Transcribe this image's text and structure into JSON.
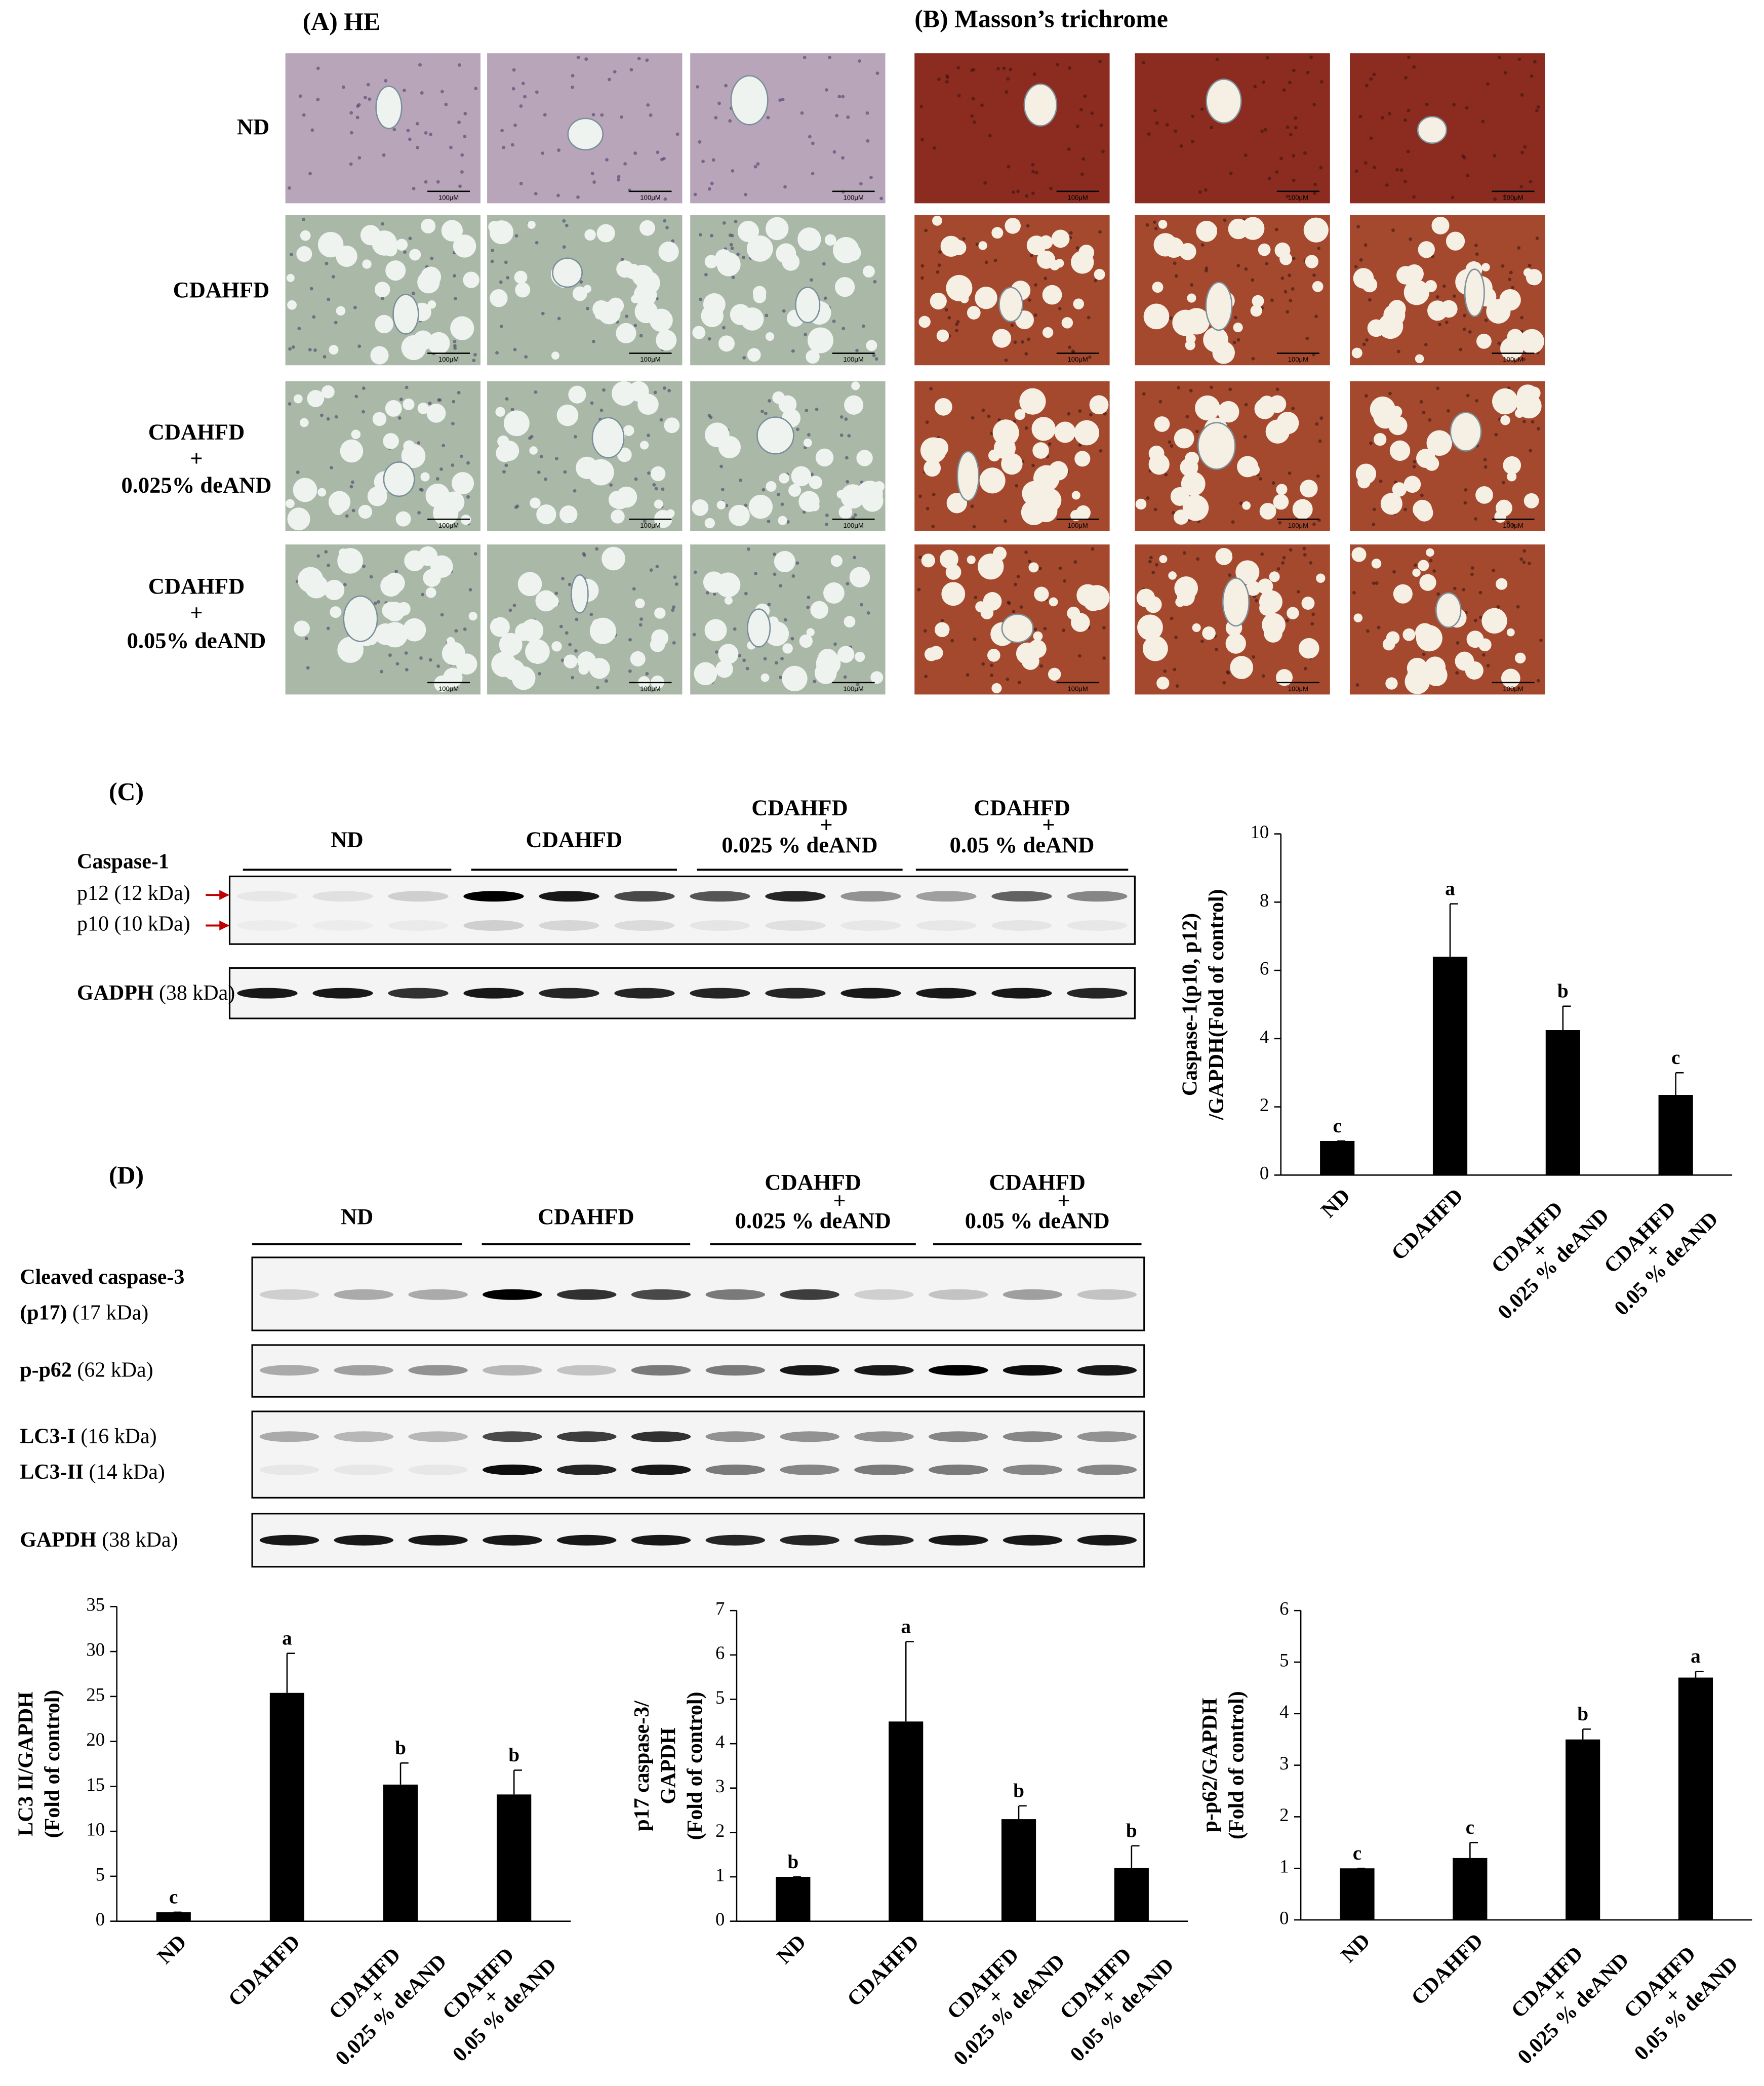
{
  "panels": {
    "A": "(A) HE",
    "B": "(B) Masson’s trichrome",
    "row_labels": [
      [
        "ND"
      ],
      [
        "CDAHFD"
      ],
      [
        "CDAHFD",
        "+",
        "0.025% deAND"
      ],
      [
        "CDAHFD",
        "+",
        "0.05% deAND"
      ]
    ],
    "scale_bar": "100μM"
  },
  "blots": [
    {
      "label": "(C)",
      "groups": [
        [
          "ND"
        ],
        [
          "CDAHFD"
        ],
        [
          "CDAHFD",
          "+",
          "0.025 % deAND"
        ],
        [
          "CDAHFD",
          "+",
          "0.05 % deAND"
        ]
      ],
      "rows": [
        [
          {
            "text": "Caspase-1",
            "bold": true
          }
        ],
        [
          {
            "text": "p12 (12 kDa)"
          }
        ],
        [
          {
            "text": "p10 (10 kDa)"
          }
        ],
        [
          {
            "text": "GADPH",
            "bold": true
          },
          {
            "text": "(38 kDa)"
          }
        ]
      ]
    },
    {
      "label": "(D)",
      "groups": [
        [
          "ND"
        ],
        [
          "CDAHFD"
        ],
        [
          "CDAHFD",
          "+",
          "0.025 % deAND"
        ],
        [
          "CDAHFD",
          "+",
          "0.05 % deAND"
        ]
      ],
      "rows": [
        [
          {
            "text": "Cleaved caspase-3",
            "bold": true
          }
        ],
        [
          {
            "text": "(p17)",
            "bold": true
          },
          {
            "text": "(17 kDa)"
          }
        ],
        [
          {
            "text": "p-p62",
            "bold": true
          },
          {
            "text": "(62 kDa)"
          }
        ],
        [
          {
            "text": "LC3-I",
            "bold": true
          },
          {
            "text": "(16 kDa)"
          }
        ],
        [
          {
            "text": "LC3-II",
            "bold": true
          },
          {
            "text": "(14 kDa)"
          }
        ],
        [
          {
            "text": "GAPDH",
            "bold": true
          },
          {
            "text": "(38 kDa)"
          }
        ]
      ]
    }
  ],
  "chart_data": [
    {
      "type": "bar",
      "ylabel": [
        "Caspase-1(p10, p12)",
        "/GAPDH(Fold of control)"
      ],
      "categories": [
        [
          "ND"
        ],
        [
          "CDAHFD"
        ],
        [
          "CDAHFD",
          "+",
          "0.025 % deAND"
        ],
        [
          "CDAHFD",
          "+",
          "0.05 % deAND"
        ]
      ],
      "values": [
        1,
        6.4,
        4.25,
        2.35
      ],
      "errors": [
        0,
        1.55,
        0.7,
        0.65
      ],
      "letters": [
        "c",
        "a",
        "b",
        "c"
      ],
      "color": "#000000",
      "ylim": [
        0,
        10
      ],
      "yticks": [
        0,
        2,
        4,
        6,
        8,
        10
      ]
    },
    {
      "type": "bar",
      "ylabel": [
        "LC3 II/GAPDH",
        "(Fold of control)"
      ],
      "categories": [
        [
          "ND"
        ],
        [
          "CDAHFD"
        ],
        [
          "CDAHFD",
          "+",
          "0.025 % deAND"
        ],
        [
          "CDAHFD",
          "+",
          "0.05 % deAND"
        ]
      ],
      "values": [
        1,
        25.4,
        15.2,
        14.1
      ],
      "errors": [
        0,
        4.4,
        2.4,
        2.7
      ],
      "letters": [
        "c",
        "a",
        "b",
        "b"
      ],
      "color": "#000000",
      "ylim": [
        0,
        35
      ],
      "yticks": [
        0,
        5,
        10,
        15,
        20,
        25,
        30,
        35
      ]
    },
    {
      "type": "bar",
      "ylabel": [
        "p17 caspase-3/",
        "GAPDH",
        "(Fold of control)"
      ],
      "categories": [
        [
          "ND"
        ],
        [
          "CDAHFD"
        ],
        [
          "CDAHFD",
          "+",
          "0.025 % deAND"
        ],
        [
          "CDAHFD",
          "+",
          "0.05 % deAND"
        ]
      ],
      "values": [
        1,
        4.5,
        2.3,
        1.2
      ],
      "errors": [
        0,
        1.8,
        0.3,
        0.5
      ],
      "letters": [
        "b",
        "a",
        "b",
        "b"
      ],
      "color": "#000000",
      "ylim": [
        0,
        7
      ],
      "yticks": [
        0,
        1,
        2,
        3,
        4,
        5,
        6,
        7
      ]
    },
    {
      "type": "bar",
      "ylabel": [
        "p-p62/GAPDH",
        "(Fold of control)"
      ],
      "categories": [
        [
          "ND"
        ],
        [
          "CDAHFD"
        ],
        [
          "CDAHFD",
          "+",
          "0.025 % deAND"
        ],
        [
          "CDAHFD",
          "+",
          "0.05 % deAND"
        ]
      ],
      "values": [
        1,
        1.2,
        3.5,
        4.7
      ],
      "errors": [
        0,
        0.3,
        0.2,
        0.12
      ],
      "letters": [
        "c",
        "c",
        "b",
        "a"
      ],
      "color": "#000000",
      "ylim": [
        0,
        6
      ],
      "yticks": [
        0,
        1,
        2,
        3,
        4,
        5,
        6
      ]
    }
  ]
}
